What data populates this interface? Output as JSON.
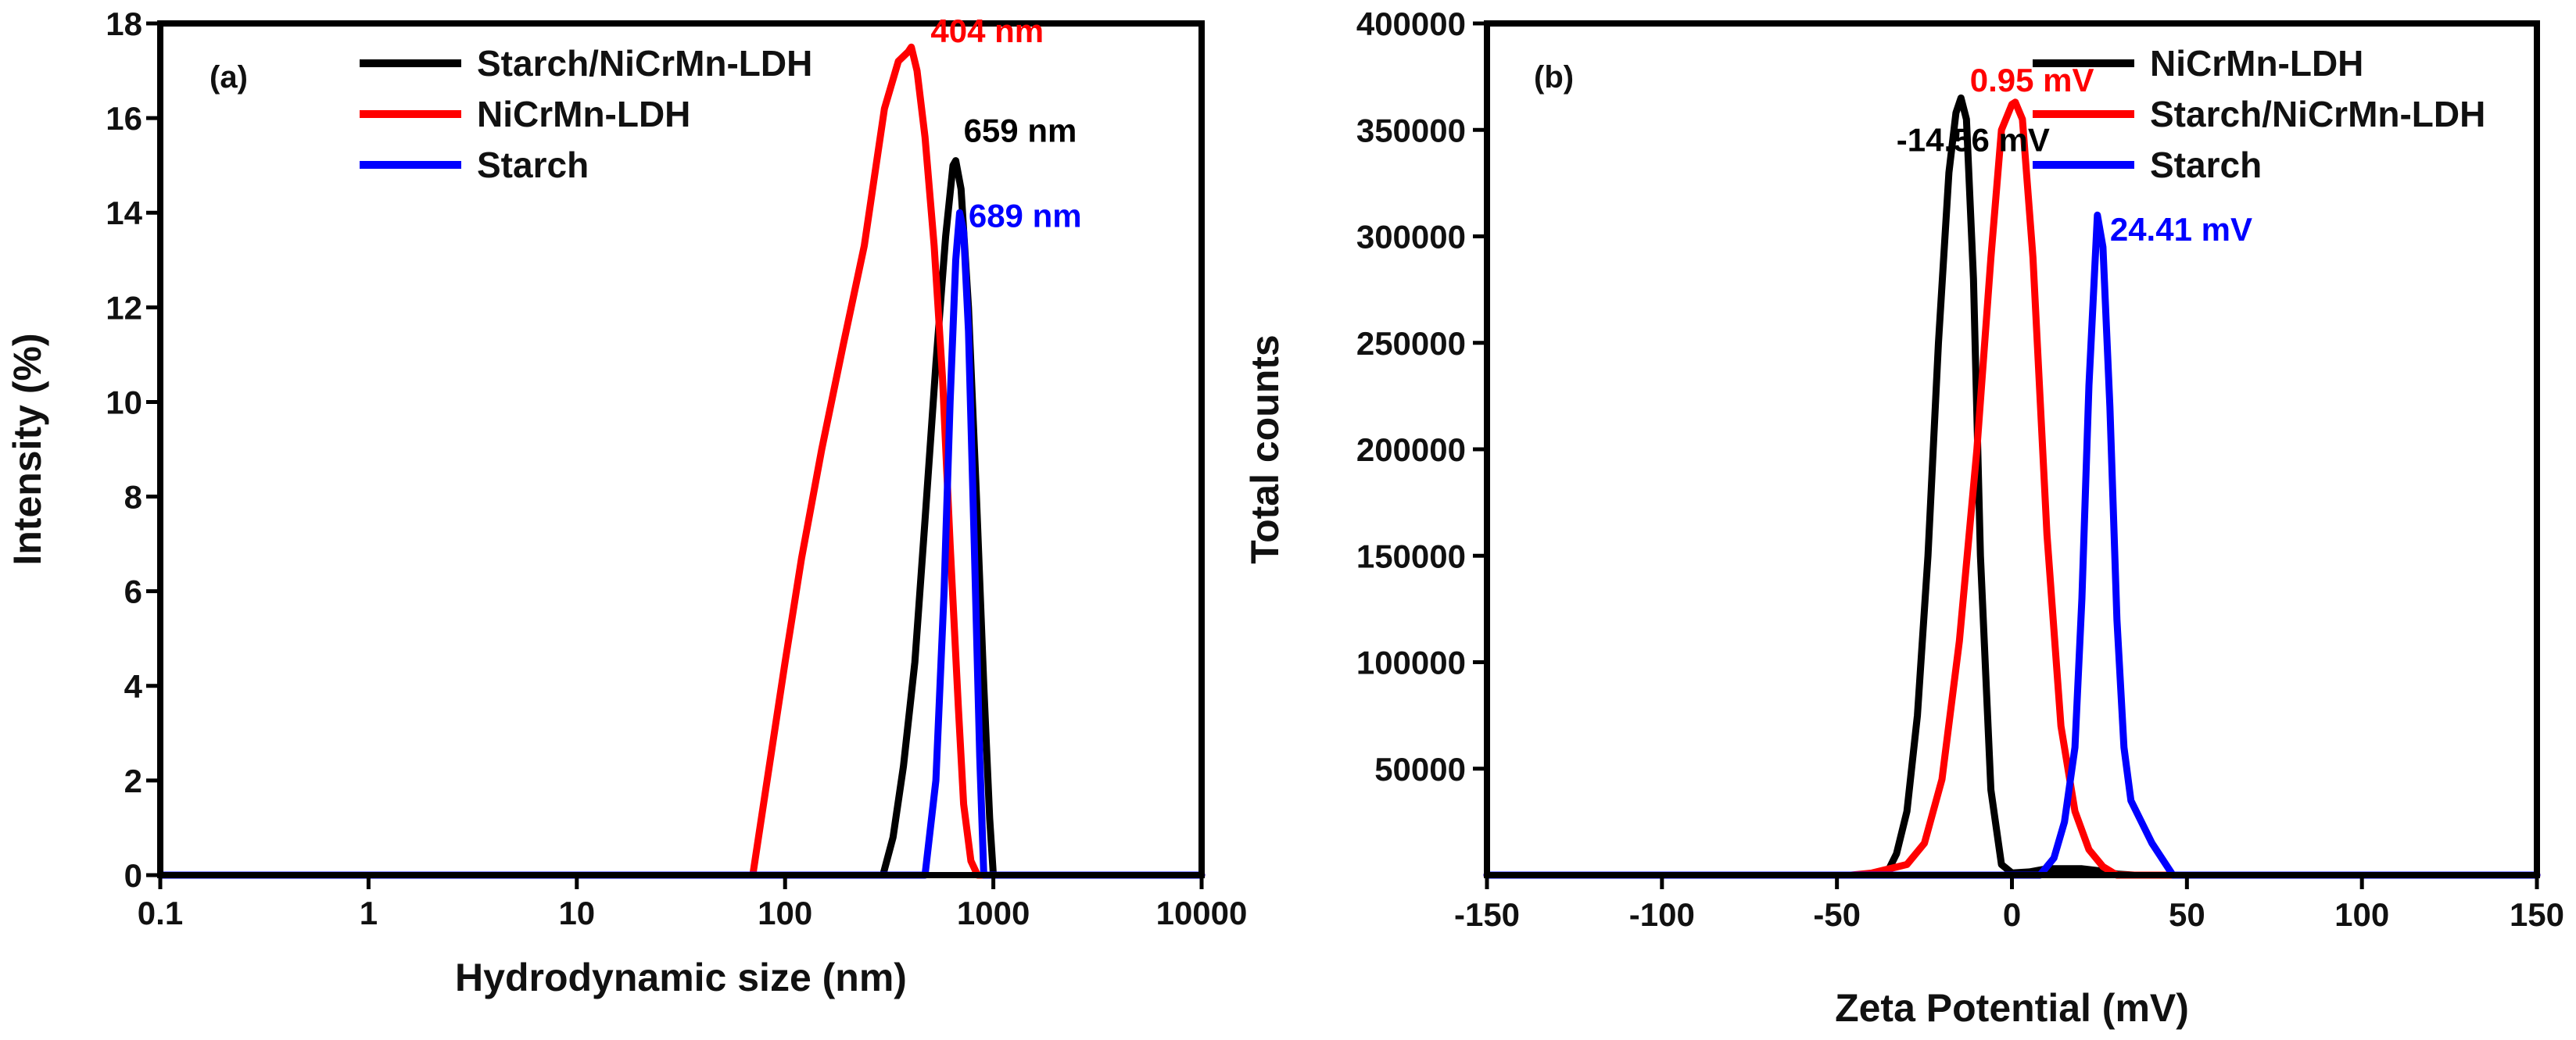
{
  "chart_data": [
    {
      "type": "line",
      "panel_label": "(a)",
      "xlabel": "Hydrodynamic size (nm)",
      "ylabel": "Intensity (%)",
      "xscale": "log",
      "xlim": [
        0.1,
        10000
      ],
      "ylim": [
        0,
        18
      ],
      "xticks": [
        0.1,
        1,
        10,
        100,
        1000,
        10000
      ],
      "xtick_labels": [
        "0.1",
        "1",
        "10",
        "100",
        "1000",
        "10000"
      ],
      "yticks": [
        0,
        2,
        4,
        6,
        8,
        10,
        12,
        14,
        16,
        18
      ],
      "ytick_labels": [
        "0",
        "2",
        "4",
        "6",
        "8",
        "10",
        "12",
        "14",
        "16",
        "18"
      ],
      "legend_position": "top-center",
      "series": [
        {
          "name": "Starch/NiCrMn-LDH",
          "color": "#000000",
          "x": [
            0.1,
            295,
            330,
            370,
            420,
            470,
            530,
            590,
            640,
            660,
            700,
            760,
            830,
            900,
            960,
            1000,
            10000
          ],
          "y": [
            0,
            0,
            0.8,
            2.3,
            4.5,
            7.5,
            10.8,
            13.5,
            15.0,
            15.1,
            14.5,
            12.0,
            8.0,
            4.0,
            1.2,
            0,
            0
          ]
        },
        {
          "name": "NiCrMn-LDH",
          "color": "#ff0000",
          "x": [
            0.1,
            70,
            82,
            100,
            120,
            150,
            190,
            240,
            300,
            350,
            390,
            404,
            430,
            470,
            520,
            570,
            620,
            680,
            720,
            780,
            840,
            10000
          ],
          "y": [
            0,
            0,
            2.0,
            4.5,
            6.7,
            9.0,
            11.2,
            13.3,
            16.2,
            17.2,
            17.4,
            17.5,
            17.0,
            15.6,
            13.3,
            10.5,
            7.0,
            3.5,
            1.5,
            0.3,
            0,
            0
          ]
        },
        {
          "name": "Starch",
          "color": "#0000ff",
          "x": [
            0.1,
            470,
            530,
            580,
            620,
            660,
            689,
            720,
            760,
            810,
            860,
            900,
            10000
          ],
          "y": [
            0,
            0,
            2.0,
            6.0,
            10.0,
            13.0,
            14.0,
            13.6,
            11.5,
            7.0,
            2.5,
            0,
            0
          ]
        }
      ],
      "annotations": [
        {
          "text": "404 nm",
          "color": "#ff0000",
          "x": 500,
          "y": 17.6
        },
        {
          "text": "659 nm",
          "color": "#000000",
          "x": 720,
          "y": 15.5
        },
        {
          "text": "689 nm",
          "color": "#0000ff",
          "x": 760,
          "y": 13.7
        }
      ]
    },
    {
      "type": "line",
      "panel_label": "(b)",
      "xlabel": "Zeta Potential (mV)",
      "ylabel": "Total counts",
      "xscale": "linear",
      "xlim": [
        -150,
        150
      ],
      "ylim": [
        0,
        400000
      ],
      "xticks": [
        -150,
        -100,
        -50,
        0,
        50,
        100,
        150
      ],
      "xtick_labels": [
        "-150",
        "-100",
        "-50",
        "0",
        "50",
        "100",
        "150"
      ],
      "yticks": [
        50000,
        100000,
        150000,
        200000,
        250000,
        300000,
        350000,
        400000
      ],
      "ytick_labels": [
        "50000",
        "100000",
        "150000",
        "200000",
        "250000",
        "300000",
        "350000",
        "400000"
      ],
      "legend_position": "top-right",
      "series": [
        {
          "name": "NiCrMn-LDH",
          "color": "#000000",
          "x": [
            -150,
            -36,
            -33,
            -30,
            -27,
            -24,
            -21,
            -18,
            -16,
            -14.56,
            -13,
            -11,
            -9,
            -6,
            -3,
            0,
            5,
            10,
            15,
            20,
            25,
            30,
            35,
            150
          ],
          "y": [
            0,
            0,
            10000,
            30000,
            75000,
            150000,
            250000,
            330000,
            358000,
            365000,
            355000,
            280000,
            150000,
            40000,
            5000,
            1000,
            1500,
            3000,
            3000,
            3000,
            2000,
            500,
            0,
            0
          ]
        },
        {
          "name": "Starch/NiCrMn-LDH",
          "color": "#ff0000",
          "x": [
            -150,
            -46,
            -40,
            -30,
            -25,
            -20,
            -15,
            -10,
            -6,
            -3,
            0,
            0.95,
            3,
            6,
            10,
            14,
            18,
            22,
            26,
            30,
            150
          ],
          "y": [
            0,
            0,
            1000,
            5000,
            15000,
            45000,
            110000,
            200000,
            290000,
            350000,
            362000,
            363000,
            355000,
            290000,
            160000,
            70000,
            30000,
            12000,
            4000,
            0,
            0
          ]
        },
        {
          "name": "Starch",
          "color": "#0000ff",
          "x": [
            -150,
            8,
            12,
            15,
            18,
            20,
            22,
            24.41,
            26,
            28,
            30,
            32,
            34,
            40,
            46,
            150
          ],
          "y": [
            0,
            0,
            8000,
            25000,
            60000,
            130000,
            230000,
            310000,
            295000,
            220000,
            120000,
            60000,
            35000,
            15000,
            0,
            0
          ]
        }
      ],
      "annotations": [
        {
          "text": "0.95 mV",
          "color": "#ff0000",
          "x": -12,
          "y": 368000
        },
        {
          "text": "-14.56 mV",
          "color": "#000000",
          "x": -33,
          "y": 340000
        },
        {
          "text": "24.41 mV",
          "color": "#0000ff",
          "x": 28,
          "y": 298000
        }
      ]
    }
  ]
}
